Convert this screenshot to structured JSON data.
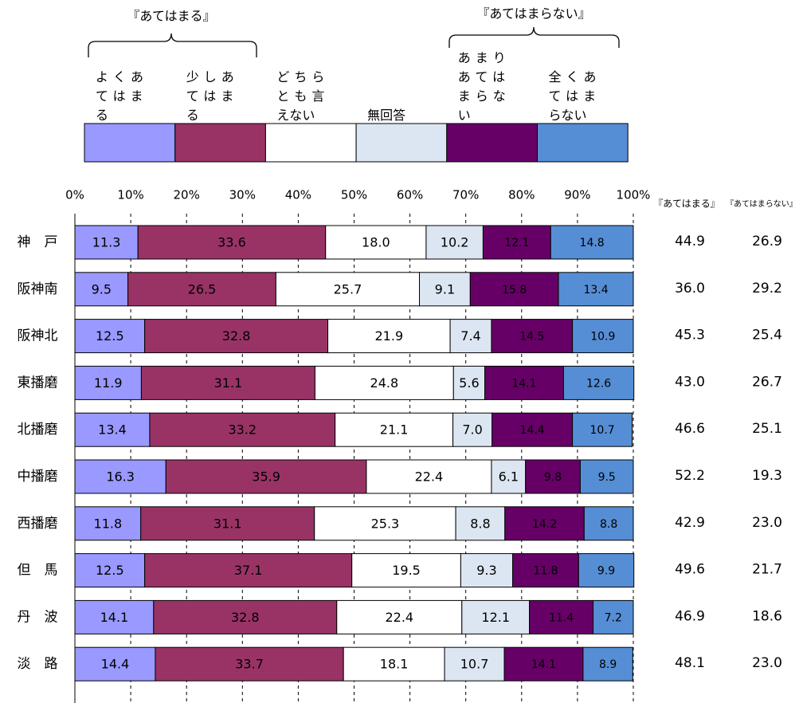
{
  "chart_data": {
    "type": "bar",
    "orientation": "horizontal",
    "stacked": true,
    "groups": [
      {
        "label": "『あてはまる』",
        "series": [
          0,
          1
        ]
      },
      {
        "label": "『あてはまらない』",
        "series": [
          4,
          5
        ]
      }
    ],
    "categories": [
      "神　戸",
      "阪神南",
      "阪神北",
      "東播磨",
      "北播磨",
      "中播磨",
      "西播磨",
      "但　馬",
      "丹　波",
      "淡　路"
    ],
    "series": [
      {
        "name": "よくあてはまる",
        "color": "#9999ff",
        "label_color": "#000000",
        "values": [
          11.3,
          9.5,
          12.5,
          11.9,
          13.4,
          16.3,
          11.8,
          12.5,
          14.1,
          14.4
        ],
        "value_labels": [
          "11.3",
          "9.5",
          "12.5",
          "11.9",
          "13.4",
          "16.3",
          "11.8",
          "12.5",
          "14.1",
          "14.4"
        ]
      },
      {
        "name": "少しあてはまる",
        "color": "#993366",
        "label_color": "#ffffff",
        "values": [
          33.6,
          26.5,
          32.8,
          31.1,
          33.2,
          35.9,
          31.1,
          37.1,
          32.8,
          33.7
        ],
        "value_labels": [
          "33.6",
          "26.5",
          "32.8",
          "31.1",
          "33.2",
          "35.9",
          "31.1",
          "37.1",
          "32.8",
          "33.7"
        ]
      },
      {
        "name": "どちらとも言えない",
        "color": "#ffffff",
        "label_color": "#000000",
        "values": [
          18.0,
          25.7,
          21.9,
          24.8,
          21.1,
          22.4,
          25.3,
          19.5,
          22.4,
          18.1
        ],
        "value_labels": [
          "18.0",
          "25.7",
          "21.9",
          "24.8",
          "21.1",
          "22.4",
          "25.3",
          "19.5",
          "22.4",
          "18.1"
        ]
      },
      {
        "name": "無回答",
        "color": "#dce6f2",
        "label_color": "#000000",
        "values": [
          10.2,
          9.1,
          7.4,
          5.6,
          7.0,
          6.1,
          8.8,
          9.3,
          12.1,
          10.7
        ],
        "value_labels": [
          "10.2",
          "9.1",
          "7.4",
          "5.6",
          "7.0",
          "6.1",
          "8.8",
          "9.3",
          "12.1",
          "10.7"
        ]
      },
      {
        "name": "あまりあてはまらない",
        "color": "#660066",
        "label_color": "#ffffff",
        "values": [
          12.1,
          15.8,
          14.5,
          14.1,
          14.4,
          9.8,
          14.2,
          11.8,
          11.4,
          14.1
        ],
        "value_labels": [
          "12.1",
          "15.8",
          "14.5",
          "14.1",
          "14.4",
          "9.8",
          "14.2",
          "11.8",
          "11.4",
          "14.1"
        ]
      },
      {
        "name": "全くあてはまらない",
        "color": "#558ed5",
        "label_color": "#000000",
        "values": [
          14.8,
          13.4,
          10.9,
          12.6,
          10.7,
          9.5,
          8.8,
          9.9,
          7.2,
          8.9
        ],
        "value_labels": [
          "14.8",
          "13.4",
          "10.9",
          "12.6",
          "10.7",
          "9.5",
          "8.8",
          "9.9",
          "7.2",
          "8.9"
        ]
      }
    ],
    "summary": [
      {
        "name": "『あてはまる』",
        "values": [
          "44.9",
          "36.0",
          "45.3",
          "43.0",
          "46.6",
          "52.2",
          "42.9",
          "49.6",
          "46.9",
          "48.1"
        ]
      },
      {
        "name": "『あてはまらない』",
        "values": [
          "26.9",
          "29.2",
          "25.4",
          "26.7",
          "25.1",
          "19.3",
          "23.0",
          "21.7",
          "18.6",
          "23.0"
        ]
      }
    ],
    "xlim": [
      0,
      100
    ],
    "xticks": [
      {
        "value": 0,
        "label": "0%"
      },
      {
        "value": 10,
        "label": "10%"
      },
      {
        "value": 20,
        "label": "20%"
      },
      {
        "value": 30,
        "label": "30%"
      },
      {
        "value": 40,
        "label": "40%"
      },
      {
        "value": 50,
        "label": "50%"
      },
      {
        "value": 60,
        "label": "60%"
      },
      {
        "value": 70,
        "label": "70%"
      },
      {
        "value": 80,
        "label": "80%"
      },
      {
        "value": 90,
        "label": "90%"
      },
      {
        "value": 100,
        "label": "100%"
      }
    ],
    "grid": true
  }
}
